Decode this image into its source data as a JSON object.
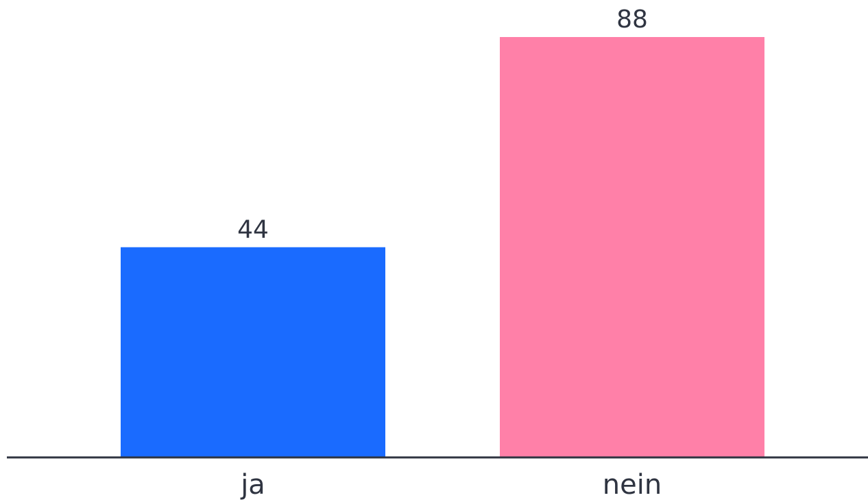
{
  "chart_data": {
    "type": "bar",
    "categories": [
      "ja",
      "nein"
    ],
    "values": [
      44,
      88
    ],
    "colors": [
      "#1a6bff",
      "#ff80a8"
    ],
    "ylim": [
      0,
      88
    ],
    "grid": false,
    "axis_color": "#2f3441",
    "label_color": "#2f3441"
  }
}
